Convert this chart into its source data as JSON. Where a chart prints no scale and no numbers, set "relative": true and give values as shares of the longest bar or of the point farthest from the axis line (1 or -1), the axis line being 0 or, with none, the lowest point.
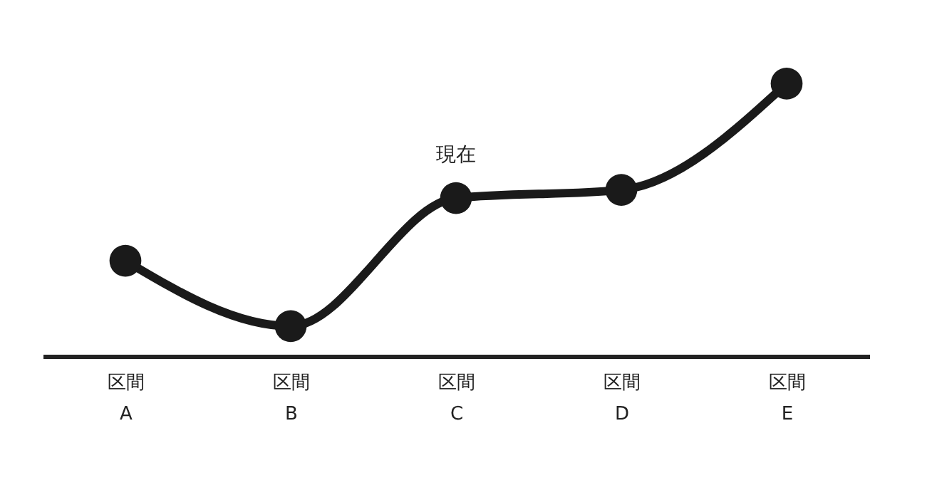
{
  "chart_data": {
    "type": "line",
    "relative": true,
    "categories": [
      "区間 A",
      "区間 B",
      "区間 C",
      "区間 D",
      "区間 E"
    ],
    "series": [
      {
        "color": "#1a1a1a",
        "values": [
          0.35,
          0.11,
          0.58,
          0.61,
          1
        ]
      }
    ],
    "marker": "circle",
    "grid": false,
    "annotations": [
      {
        "text": "現在",
        "x": "区間 C",
        "y": 0.58
      }
    ]
  }
}
